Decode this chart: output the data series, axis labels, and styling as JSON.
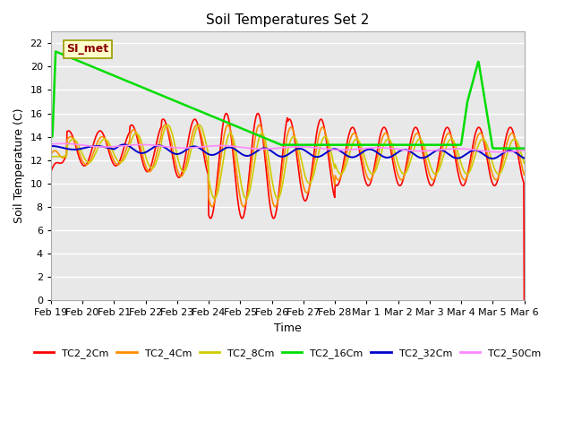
{
  "title": "Soil Temperatures Set 2",
  "xlabel": "Time",
  "ylabel": "Soil Temperature (C)",
  "ylim": [
    0,
    23
  ],
  "yticks": [
    0,
    2,
    4,
    6,
    8,
    10,
    12,
    14,
    16,
    18,
    20,
    22
  ],
  "background_color": "#ffffff",
  "plot_bg_color": "#e8e8e8",
  "annotation_text": "SI_met",
  "annotation_bg": "#ffffcc",
  "annotation_fg": "#8b0000",
  "series": {
    "TC2_2Cm": {
      "color": "#ff0000",
      "lw": 1.2
    },
    "TC2_4Cm": {
      "color": "#ff8c00",
      "lw": 1.2
    },
    "TC2_8Cm": {
      "color": "#cccc00",
      "lw": 1.2
    },
    "TC2_16Cm": {
      "color": "#00dd00",
      "lw": 1.8
    },
    "TC2_32Cm": {
      "color": "#0000cc",
      "lw": 1.4
    },
    "TC2_50Cm": {
      "color": "#ff88ff",
      "lw": 1.2
    }
  },
  "xtick_labels": [
    "Feb 19",
    "Feb 20",
    "Feb 21",
    "Feb 22",
    "Feb 23",
    "Feb 24",
    "Feb 25",
    "Feb 26",
    "Feb 27",
    "Feb 28",
    "Mar 1",
    "Mar 2",
    "Mar 3",
    "Mar 4",
    "Mar 5",
    "Mar 6"
  ]
}
